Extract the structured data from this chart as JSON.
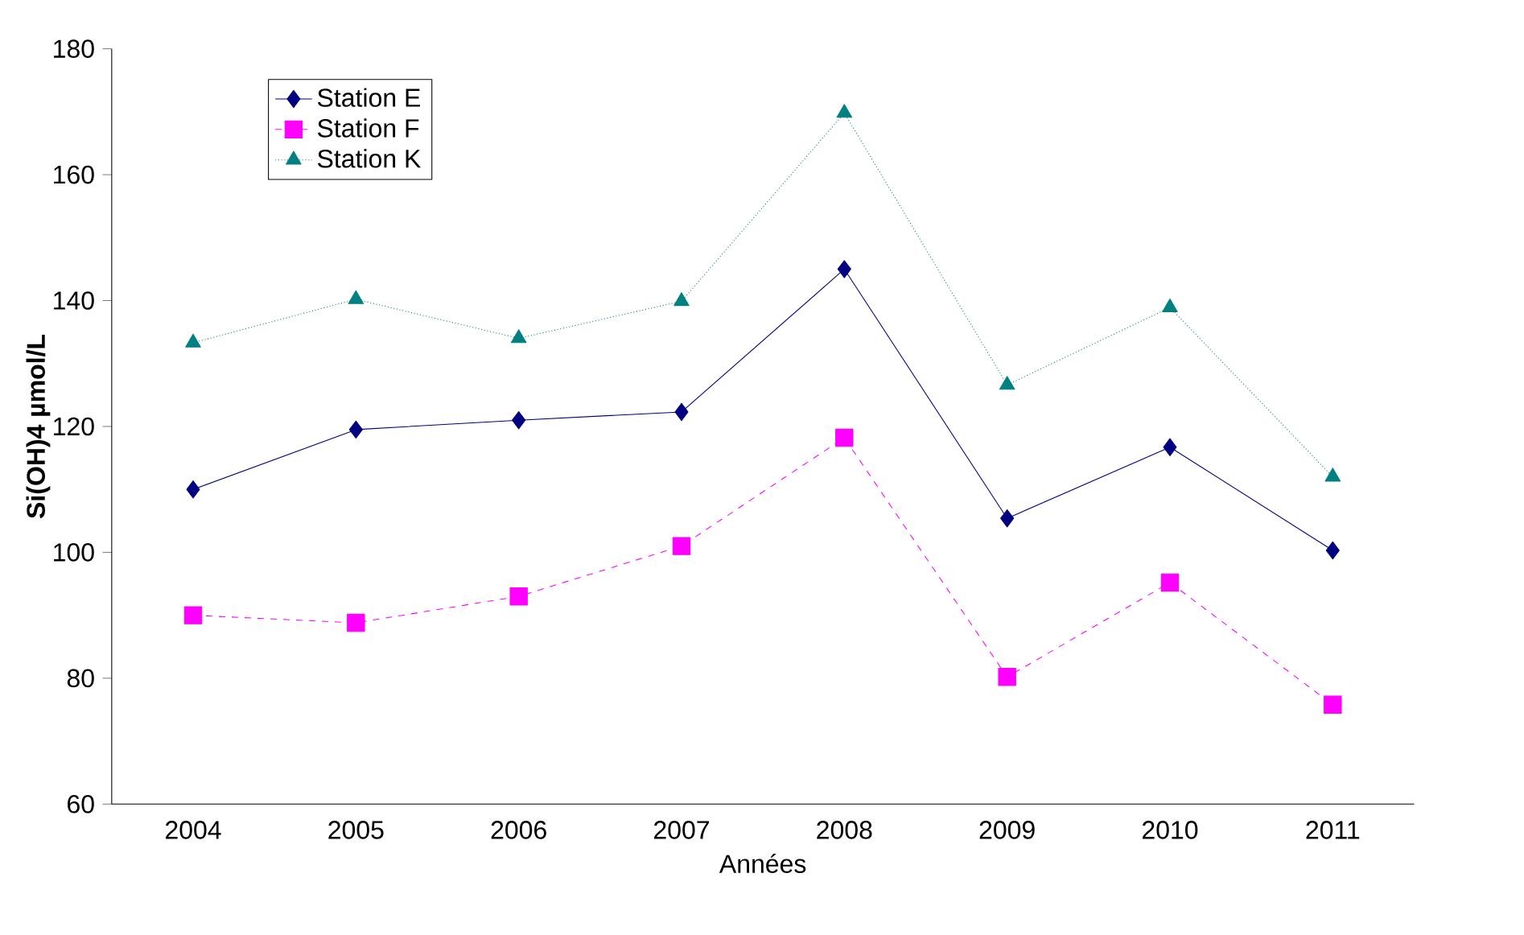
{
  "chart_data": {
    "type": "line",
    "xlabel": "Années",
    "ylabel": "Si(OH)4 µmol/L",
    "categories": [
      "2004",
      "2005",
      "2006",
      "2007",
      "2008",
      "2009",
      "2010",
      "2011"
    ],
    "series": [
      {
        "name": "Station E",
        "color": "#000080",
        "marker": "diamond",
        "line_style": "solid",
        "values": [
          110,
          119.5,
          121,
          122.3,
          145,
          105.4,
          116.7,
          100.3
        ]
      },
      {
        "name": "Station F",
        "color": "#ff00ff",
        "marker": "square",
        "line_style": "dashed",
        "values": [
          90,
          88.8,
          93,
          101,
          118.2,
          80.2,
          95.2,
          75.8
        ]
      },
      {
        "name": "Station K",
        "color": "#008080",
        "marker": "triangle",
        "line_style": "dotted",
        "values": [
          133.3,
          140.2,
          134,
          139.9,
          169.8,
          126.6,
          138.9,
          112
        ]
      }
    ],
    "ylim": [
      60,
      180
    ],
    "yticks": [
      60,
      80,
      100,
      120,
      140,
      160,
      180
    ],
    "grid": false,
    "legend": "top left"
  }
}
